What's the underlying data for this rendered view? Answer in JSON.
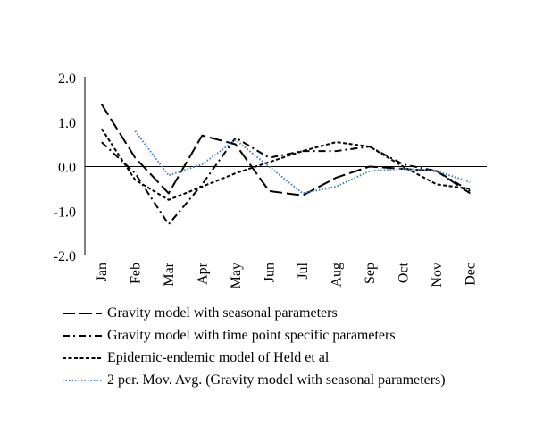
{
  "chart_data": {
    "type": "line",
    "categories": [
      "Jan",
      "Feb",
      "Mar",
      "Apr",
      "May",
      "Jun",
      "Jul",
      "Aug",
      "Sep",
      "Oct",
      "Nov",
      "Dec"
    ],
    "ylim": [
      -2.0,
      2.0
    ],
    "y_ticks": [
      "2.0",
      "1.0",
      "0.0",
      "-1.0",
      "-2.0"
    ],
    "y_tick_values": [
      2.0,
      1.0,
      0.0,
      -1.0,
      -2.0
    ],
    "grid": false,
    "legend_position": "bottom",
    "series": [
      {
        "name": "Gravity model with seasonal parameters",
        "color": "#000000",
        "dash": "long-dash",
        "values": [
          1.4,
          0.2,
          -0.6,
          0.7,
          0.5,
          -0.55,
          -0.65,
          -0.25,
          0.0,
          -0.05,
          -0.1,
          -0.6
        ]
      },
      {
        "name": "Gravity model with time point specific parameters",
        "color": "#000000",
        "dash": "dash-dot",
        "values": [
          0.55,
          -0.15,
          -1.3,
          -0.4,
          0.65,
          0.2,
          0.35,
          0.35,
          0.45,
          0.05,
          -0.1,
          -0.55
        ]
      },
      {
        "name": "Epidemic-endemic model of Held et al",
        "color": "#000000",
        "dash": "short-dash",
        "values": [
          0.85,
          -0.3,
          -0.75,
          -0.45,
          -0.15,
          0.1,
          0.35,
          0.55,
          0.45,
          0.0,
          -0.4,
          -0.5
        ]
      },
      {
        "name": "2 per. Mov. Avg. (Gravity model with seasonal parameters)",
        "color": "#4a7cc0",
        "dash": "dotted",
        "values": [
          null,
          0.8,
          -0.2,
          0.05,
          0.6,
          0.0,
          -0.6,
          -0.45,
          -0.1,
          -0.05,
          -0.1,
          -0.35
        ]
      }
    ]
  }
}
